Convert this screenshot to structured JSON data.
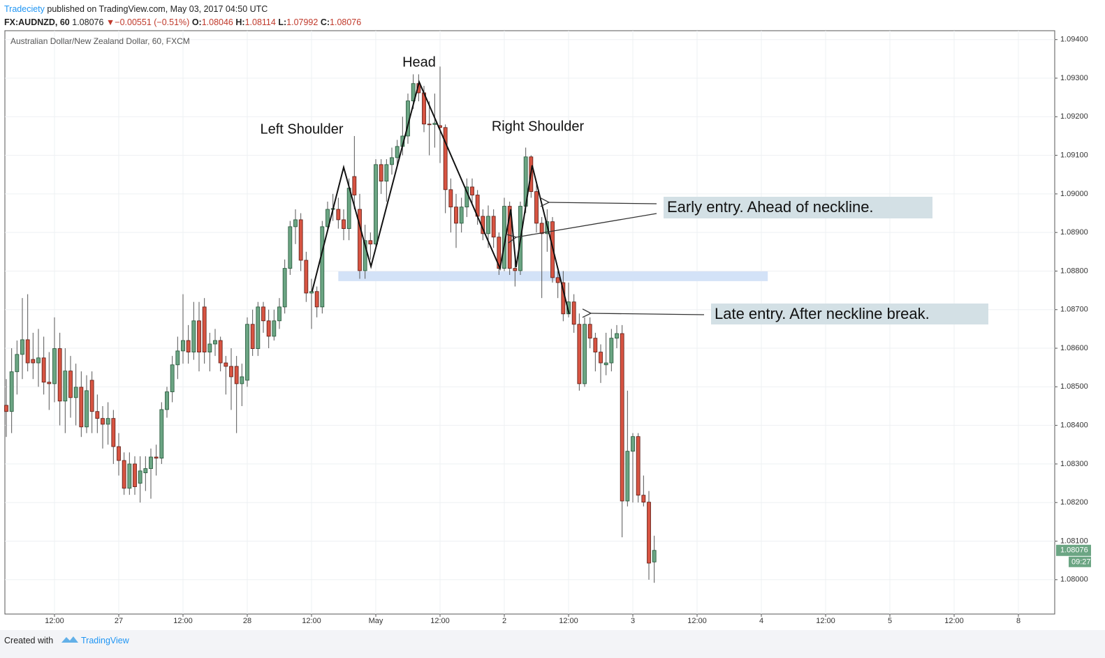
{
  "header": {
    "publisher": "Tradeciety",
    "published": "published on TradingView.com, May 03, 2017 04:50 UTC",
    "symbol": "FX:AUDNZD, 60",
    "last": "1.08076",
    "arrow": "▼",
    "change": "−0.00551 (−0.51%)",
    "o_label": "O:",
    "o": "1.08046",
    "h_label": "H:",
    "h": "1.08114",
    "l_label": "L:",
    "l": "1.07992",
    "c_label": "C:",
    "c": "1.08076"
  },
  "footer": {
    "created": "Created with",
    "brand": "TradingView"
  },
  "chart_data": {
    "type": "candlestick",
    "title": "Australian Dollar/New Zealand Dollar, 60, FXCM",
    "up_color": "#6ba583",
    "down_color": "#d75442",
    "grid": true,
    "xlim": [
      -21.26,
      174.78
    ],
    "ylim": [
      1.07911,
      1.09423
    ],
    "xticks": [
      {
        "value": -12,
        "label": "12:00"
      },
      {
        "value": 0,
        "label": "27"
      },
      {
        "value": 12,
        "label": "12:00"
      },
      {
        "value": 24,
        "label": "28"
      },
      {
        "value": 36,
        "label": "12:00"
      },
      {
        "value": 48,
        "label": "May"
      },
      {
        "value": 60,
        "label": "12:00"
      },
      {
        "value": 72,
        "label": "2"
      },
      {
        "value": 84,
        "label": "12:00"
      },
      {
        "value": 96,
        "label": "3"
      },
      {
        "value": 108,
        "label": "12:00"
      },
      {
        "value": 120,
        "label": "4"
      },
      {
        "value": 132,
        "label": "12:00"
      },
      {
        "value": 144,
        "label": "5"
      },
      {
        "value": 156,
        "label": "12:00"
      },
      {
        "value": 168,
        "label": "8"
      }
    ],
    "yticks": [
      {
        "value": 1.08,
        "label": "1.08000"
      },
      {
        "value": 1.081,
        "label": "1.08100"
      },
      {
        "value": 1.082,
        "label": "1.08200"
      },
      {
        "value": 1.083,
        "label": "1.08300"
      },
      {
        "value": 1.084,
        "label": "1.08400"
      },
      {
        "value": 1.085,
        "label": "1.08500"
      },
      {
        "value": 1.086,
        "label": "1.08600"
      },
      {
        "value": 1.087,
        "label": "1.08700"
      },
      {
        "value": 1.088,
        "label": "1.08800"
      },
      {
        "value": 1.089,
        "label": "1.08900"
      },
      {
        "value": 1.09,
        "label": "1.09000"
      },
      {
        "value": 1.091,
        "label": "1.09100"
      },
      {
        "value": 1.092,
        "label": "1.09200"
      },
      {
        "value": 1.093,
        "label": "1.09300"
      },
      {
        "value": 1.094,
        "label": "1.09400"
      }
    ],
    "x": [
      -21,
      -20,
      -19,
      -18,
      -17,
      -16,
      -15,
      -14,
      -13,
      -12,
      -11,
      -10,
      -9,
      -8,
      -7,
      -6,
      -5,
      -4,
      -3,
      -2,
      -1,
      0,
      1,
      2,
      3,
      4,
      5,
      6,
      7,
      8,
      9,
      10,
      11,
      12,
      13,
      14,
      15,
      16,
      17,
      18,
      19,
      20,
      21,
      22,
      23,
      24,
      25,
      26,
      27,
      28,
      29,
      30,
      31,
      32,
      33,
      34,
      35,
      36,
      37,
      38,
      39,
      40,
      41,
      42,
      43,
      44,
      45,
      46,
      47,
      48,
      49,
      50,
      51,
      52,
      53,
      54,
      55,
      56,
      57,
      58,
      59,
      60,
      61,
      62,
      63,
      64,
      65,
      66,
      67,
      68,
      69,
      70,
      71,
      72,
      73,
      74,
      75,
      76,
      77,
      78,
      79,
      80,
      81,
      82,
      83,
      84,
      85,
      86,
      87,
      88,
      89,
      90,
      91,
      92,
      93,
      94,
      95,
      96,
      97,
      98,
      99,
      100
    ],
    "open": [
      1.08452,
      1.08436,
      1.08539,
      1.08584,
      1.08622,
      1.08571,
      1.08562,
      1.08575,
      1.08512,
      1.08508,
      1.08599,
      1.08463,
      1.08541,
      1.08472,
      1.08499,
      1.08396,
      1.08517,
      1.08436,
      1.08418,
      1.08403,
      1.08418,
      1.08345,
      1.08309,
      1.08237,
      1.083,
      1.0825,
      1.08277,
      1.08288,
      1.08318,
      1.08315,
      1.08441,
      1.08487,
      1.08557,
      1.08593,
      1.0862,
      1.0859,
      1.08671,
      1.08707,
      1.0859,
      1.08611,
      1.0862,
      1.08562,
      1.08553,
      1.08553,
      1.08508,
      1.08517,
      1.08662,
      1.08599,
      1.08707,
      1.08671,
      1.08631,
      1.08671,
      1.08707,
      1.08807,
      1.08915,
      1.08933,
      1.08828,
      1.08743,
      1.08747,
      1.08707,
      1.08915,
      1.0896,
      1.0896,
      1.08933,
      1.0891,
      1.09045,
      1.0896,
      1.08801,
      1.08879,
      1.0887,
      1.09076,
      1.09033,
      1.09076,
      1.09094,
      1.09123,
      1.0915,
      1.09241,
      1.09286,
      1.09262,
      1.09181,
      1.0918,
      1.09177,
      1.09172,
      1.09011,
      1.08966,
      1.08924,
      1.08966,
      1.09018,
      1.08997,
      1.08942,
      1.08897,
      1.08942,
      1.08888,
      1.08807,
      1.08968,
      1.08807,
      1.08801,
      1.08968,
      1.09096,
      1.09006,
      1.08924,
      1.08897,
      1.08928,
      1.08783,
      1.0877,
      1.08689,
      1.0872,
      1.08662,
      1.08508,
      1.08662,
      1.08626,
      1.0859,
      1.08557,
      1.08562,
      1.08626,
      1.08638,
      1.08204,
      1.08333,
      1.08371,
      1.08219,
      1.08201,
      1.08046
    ],
    "high": [
      1.0852,
      1.086,
      1.0862,
      1.0873,
      1.0874,
      1.0864,
      1.0865,
      1.0863,
      1.0859,
      1.0868,
      1.0864,
      1.086,
      1.0858,
      1.0856,
      1.0854,
      1.0853,
      1.0854,
      1.0848,
      1.0845,
      1.0846,
      1.0844,
      1.0838,
      1.0833,
      1.0833,
      1.0832,
      1.0832,
      1.0832,
      1.0834,
      1.0835,
      1.0846,
      1.085,
      1.0858,
      1.0863,
      1.0874,
      1.0866,
      1.0872,
      1.0872,
      1.0873,
      1.0864,
      1.0865,
      1.0863,
      1.0858,
      1.086,
      1.0858,
      1.0856,
      1.0868,
      1.087,
      1.0872,
      1.0872,
      1.087,
      1.087,
      1.0873,
      1.0883,
      1.0893,
      1.0896,
      1.0895,
      1.0885,
      1.0878,
      1.0876,
      1.0893,
      1.0898,
      1.09,
      1.0899,
      1.0896,
      1.0904,
      1.0915,
      1.09,
      1.0892,
      1.089,
      1.0909,
      1.0909,
      1.0909,
      1.0912,
      1.0914,
      1.092,
      1.0926,
      1.0931,
      1.0931,
      1.0928,
      1.0924,
      1.0926,
      1.0933,
      1.0918,
      1.0904,
      1.09,
      1.0899,
      1.0904,
      1.0904,
      1.0901,
      1.0896,
      1.0897,
      1.0896,
      1.089,
      1.0899,
      1.0898,
      1.0883,
      1.0898,
      1.0912,
      1.091,
      1.0903,
      1.0894,
      1.0896,
      1.0894,
      1.088,
      1.088,
      1.0877,
      1.0874,
      1.0869,
      1.0868,
      1.0868,
      1.0864,
      1.0861,
      1.0864,
      1.0865,
      1.0866,
      1.0866,
      1.0849,
      1.0838,
      1.0838,
      1.0827,
      1.0823,
      1.08114
    ],
    "low": [
      1.0837,
      1.0838,
      1.0848,
      1.0852,
      1.0854,
      1.0852,
      1.085,
      1.0848,
      1.0844,
      1.0846,
      1.084,
      1.0838,
      1.0842,
      1.084,
      1.0837,
      1.0838,
      1.0838,
      1.0838,
      1.0834,
      1.0835,
      1.083,
      1.0827,
      1.0822,
      1.0822,
      1.0822,
      1.082,
      1.0823,
      1.0821,
      1.0827,
      1.083,
      1.0842,
      1.0846,
      1.0852,
      1.0856,
      1.0856,
      1.0857,
      1.0854,
      1.0856,
      1.0854,
      1.0858,
      1.0854,
      1.0848,
      1.0844,
      1.0838,
      1.0845,
      1.085,
      1.0858,
      1.0858,
      1.0864,
      1.086,
      1.0862,
      1.0865,
      1.0869,
      1.0879,
      1.0887,
      1.088,
      1.0872,
      1.0865,
      1.0868,
      1.0869,
      1.089,
      1.0893,
      1.0891,
      1.0888,
      1.0888,
      1.0896,
      1.0878,
      1.0878,
      1.0883,
      1.0886,
      1.09,
      1.0898,
      1.0905,
      1.0907,
      1.091,
      1.0913,
      1.0922,
      1.0924,
      1.0916,
      1.091,
      1.0912,
      1.0908,
      1.0895,
      1.089,
      1.0886,
      1.089,
      1.0894,
      1.0897,
      1.0892,
      1.0888,
      1.0886,
      1.0886,
      1.0879,
      1.088,
      1.0879,
      1.0876,
      1.0879,
      1.0895,
      1.0899,
      1.089,
      1.0873,
      1.0885,
      1.0877,
      1.0873,
      1.0867,
      1.0868,
      1.0864,
      1.0849,
      1.085,
      1.086,
      1.0854,
      1.0851,
      1.0853,
      1.0854,
      1.086,
      1.0811,
      1.0819,
      1.082,
      1.082,
      1.0819,
      1.08,
      1.07992
    ],
    "close": [
      1.08436,
      1.08539,
      1.08584,
      1.08622,
      1.08562,
      1.08562,
      1.08575,
      1.08512,
      1.08508,
      1.08599,
      1.08463,
      1.08541,
      1.08472,
      1.08499,
      1.08396,
      1.0849,
      1.08436,
      1.08418,
      1.08403,
      1.08418,
      1.08345,
      1.08309,
      1.08237,
      1.083,
      1.08241,
      1.08282,
      1.08288,
      1.08318,
      1.08315,
      1.08441,
      1.08487,
      1.08557,
      1.08593,
      1.0862,
      1.0859,
      1.08671,
      1.0859,
      1.0859,
      1.08611,
      1.0862,
      1.08562,
      1.08553,
      1.08526,
      1.08508,
      1.08526,
      1.08662,
      1.08599,
      1.08707,
      1.08671,
      1.08631,
      1.08671,
      1.08707,
      1.08807,
      1.08915,
      1.08933,
      1.08828,
      1.08743,
      1.08747,
      1.08707,
      1.08915,
      1.0896,
      1.08962,
      1.08933,
      1.0891,
      1.09015,
      1.08997,
      1.08801,
      1.08879,
      1.0887,
      1.09076,
      1.09033,
      1.09076,
      1.09094,
      1.09123,
      1.0915,
      1.09241,
      1.09286,
      1.09262,
      1.09181,
      1.0918,
      1.09183,
      1.09172,
      1.09011,
      1.08966,
      1.08924,
      1.08966,
      1.09018,
      1.08997,
      1.08942,
      1.08897,
      1.08942,
      1.08888,
      1.08807,
      1.08968,
      1.08807,
      1.08801,
      1.08968,
      1.09096,
      1.09006,
      1.08924,
      1.08897,
      1.08928,
      1.08783,
      1.0877,
      1.08689,
      1.0872,
      1.08662,
      1.08508,
      1.08662,
      1.08626,
      1.0859,
      1.08562,
      1.08562,
      1.08626,
      1.08638,
      1.08204,
      1.08333,
      1.08371,
      1.08219,
      1.08201,
      1.08043,
      1.08076
    ],
    "last_price_label": "1.08076",
    "countdown": "09:27",
    "neckline_zone": {
      "x": [
        41,
        121.2
      ],
      "y": [
        1.08774,
        1.08799
      ],
      "color": "#d3e2f7"
    },
    "pattern_line": {
      "x": [
        36.1,
        42,
        47.1,
        56.1,
        71.2,
        73.2,
        74.2,
        77.2,
        84.1
      ],
      "y": [
        1.08747,
        1.09069,
        1.08812,
        1.0929,
        1.08807,
        1.0896,
        1.0881,
        1.09074,
        1.08689
      ]
    },
    "annotations": {
      "head": "Head",
      "left_shoulder": "Left Shoulder",
      "right_shoulder": "Right Shoulder",
      "early": "Early entry. Ahead of neckline.",
      "late": "Late entry. After neckline break."
    }
  }
}
